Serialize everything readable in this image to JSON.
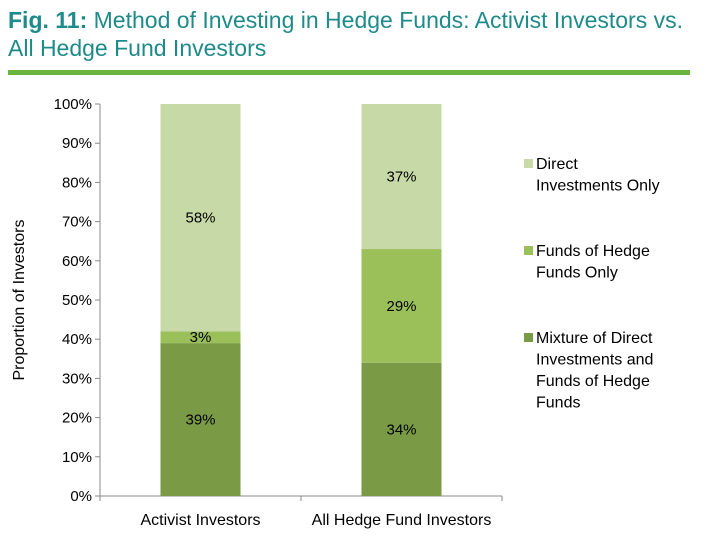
{
  "title": {
    "prefix": "Fig. 11:",
    "text": "Method of Investing in Hedge Funds: Activist Investors vs. All Hedge Fund Investors"
  },
  "colors": {
    "title": "#1e8a8a",
    "rule": "#6ab43e",
    "series": [
      "#7a9a46",
      "#9bbf59",
      "#c7d9a6"
    ]
  },
  "chart_data": {
    "type": "bar",
    "stacked": true,
    "categories": [
      "Activist Investors",
      "All Hedge Fund Investors"
    ],
    "series": [
      {
        "name": "Mixture of Direct Investments and Funds of Hedge Funds",
        "values": [
          39,
          34
        ],
        "labels": [
          "39%",
          "34%"
        ]
      },
      {
        "name": "Funds of Hedge Funds Only",
        "values": [
          3,
          29
        ],
        "labels": [
          "3%",
          "29%"
        ]
      },
      {
        "name": "Direct Investments Only",
        "values": [
          58,
          37
        ],
        "labels": [
          "58%",
          "37%"
        ]
      }
    ],
    "legend_order": [
      "Direct Investments Only",
      "Funds of Hedge Funds Only",
      "Mixture of Direct Investments and Funds of Hedge Funds"
    ],
    "legend_lines": [
      [
        "Direct",
        "Investments Only"
      ],
      [
        "Funds of Hedge",
        "Funds Only"
      ],
      [
        "Mixture of Direct",
        "Investments and",
        "Funds of Hedge",
        "Funds"
      ]
    ],
    "ylabel": "Proportion of Investors",
    "xlabel": "",
    "ylim": [
      0,
      100
    ],
    "yticks": [
      "0%",
      "10%",
      "20%",
      "30%",
      "40%",
      "50%",
      "60%",
      "70%",
      "80%",
      "90%",
      "100%"
    ],
    "grid": false,
    "legend_position": "right"
  }
}
